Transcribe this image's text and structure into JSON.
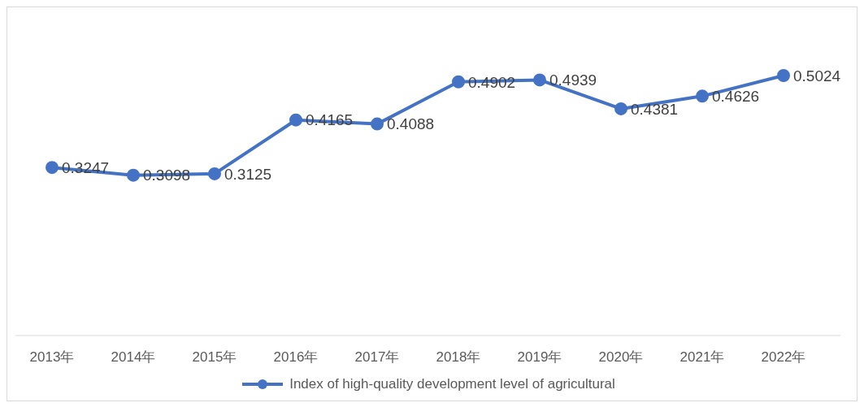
{
  "chart_data": {
    "type": "line",
    "categories": [
      "2013年",
      "2014年",
      "2015年",
      "2016年",
      "2017年",
      "2018年",
      "2019年",
      "2020年",
      "2021年",
      "2022年"
    ],
    "series": [
      {
        "name": "Index of high-quality development level of agricultural",
        "color": "#4472c4",
        "values": [
          0.3247,
          0.3098,
          0.3125,
          0.4165,
          0.4088,
          0.4902,
          0.4939,
          0.4381,
          0.4626,
          0.5024
        ]
      }
    ],
    "data_labels": true,
    "legend": "bottom",
    "grid": false,
    "marker": "circle",
    "line_style": "solid"
  }
}
